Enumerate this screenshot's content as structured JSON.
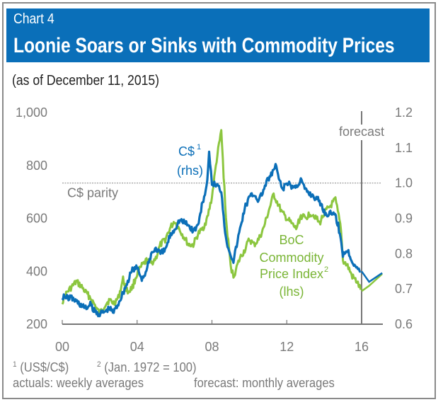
{
  "header": {
    "chart_number": "Chart 4",
    "title": "Loonie Soars or Sinks with Commodity Prices"
  },
  "subtitle": "(as of December 11, 2015)",
  "colors": {
    "header_bg": "#0a6fb9",
    "cad_series": "#0b6fb8",
    "commodity_series": "#8cc63f",
    "axis": "#777777",
    "text_gray": "#7a7a7a"
  },
  "chart_data": {
    "type": "line",
    "title": "Loonie Soars or Sinks with Commodity Prices",
    "subtitle": "(as of December 11, 2015)",
    "xlabel": "",
    "x_ticks": [
      0,
      4,
      8,
      12,
      16
    ],
    "x_tick_labels": [
      "00",
      "04",
      "08",
      "12",
      "16"
    ],
    "xlim": [
      2000,
      2017.1
    ],
    "y_left": {
      "label": "lhs",
      "ticks": [
        200,
        400,
        600,
        800,
        1000
      ],
      "tick_labels": [
        "200",
        "400",
        "600",
        "800",
        "1,000"
      ],
      "lim": [
        200,
        1000
      ]
    },
    "y_right": {
      "label": "rhs",
      "ticks": [
        0.6,
        0.7,
        0.8,
        0.9,
        1.0,
        1.1,
        1.2
      ],
      "tick_labels": [
        "0.6",
        "0.7",
        "0.8",
        "0.9",
        "1.0",
        "1.1",
        "1.2"
      ],
      "lim": [
        0.6,
        1.2
      ]
    },
    "grid": false,
    "reference_line": {
      "axis": "right",
      "value": 1.0,
      "label": "C$ parity",
      "style": "dotted"
    },
    "forecast_marker": {
      "x": 2016.0,
      "label": "forecast"
    },
    "series": [
      {
        "name": "C$ (rhs)",
        "label_lines": [
          "C$",
          "(rhs)"
        ],
        "label_superscript": "1",
        "axis": "right",
        "actual": {
          "x": [
            2000.0,
            2000.25,
            2000.5,
            2000.75,
            2001.0,
            2001.25,
            2001.5,
            2001.75,
            2002.0,
            2002.25,
            2002.5,
            2002.75,
            2003.0,
            2003.25,
            2003.5,
            2003.75,
            2004.0,
            2004.25,
            2004.5,
            2004.75,
            2005.0,
            2005.25,
            2005.5,
            2005.75,
            2006.0,
            2006.25,
            2006.5,
            2006.75,
            2007.0,
            2007.25,
            2007.5,
            2007.75,
            2007.85,
            2008.0,
            2008.25,
            2008.5,
            2008.75,
            2009.0,
            2009.15,
            2009.5,
            2009.75,
            2010.0,
            2010.25,
            2010.5,
            2010.75,
            2011.0,
            2011.25,
            2011.4,
            2011.75,
            2012.0,
            2012.25,
            2012.5,
            2012.75,
            2013.0,
            2013.25,
            2013.5,
            2013.75,
            2014.0,
            2014.25,
            2014.5,
            2014.75,
            2015.0,
            2015.25,
            2015.5,
            2015.75,
            2015.95
          ],
          "y": [
            0.68,
            0.675,
            0.675,
            0.665,
            0.655,
            0.645,
            0.655,
            0.635,
            0.63,
            0.635,
            0.645,
            0.635,
            0.66,
            0.69,
            0.72,
            0.755,
            0.76,
            0.73,
            0.75,
            0.8,
            0.815,
            0.8,
            0.81,
            0.85,
            0.87,
            0.895,
            0.89,
            0.88,
            0.865,
            0.88,
            0.945,
            1.0,
            1.08,
            1.0,
            0.995,
            0.98,
            0.84,
            0.8,
            0.78,
            0.87,
            0.93,
            0.96,
            0.97,
            0.95,
            0.98,
            1.01,
            1.03,
            1.05,
            0.98,
            1.0,
            0.99,
            0.99,
            1.01,
            0.98,
            0.97,
            0.96,
            0.95,
            0.92,
            0.91,
            0.92,
            0.88,
            0.8,
            0.81,
            0.78,
            0.76,
            0.75
          ]
        },
        "forecast": {
          "x": [
            2016.0,
            2016.4,
            2017.1
          ],
          "y": [
            0.75,
            0.72,
            0.745
          ]
        }
      },
      {
        "name": "BoC Commodity Price Index (lhs)",
        "label_lines": [
          "BoC",
          "Commodity",
          "Price Index",
          "(lhs)"
        ],
        "label_superscript": "2",
        "axis": "left",
        "actual": {
          "x": [
            2000.0,
            2000.25,
            2000.5,
            2000.75,
            2001.0,
            2001.25,
            2001.5,
            2001.75,
            2002.0,
            2002.25,
            2002.5,
            2002.75,
            2003.0,
            2003.25,
            2003.5,
            2003.75,
            2004.0,
            2004.25,
            2004.5,
            2004.75,
            2005.0,
            2005.25,
            2005.5,
            2005.75,
            2006.0,
            2006.25,
            2006.5,
            2006.75,
            2007.0,
            2007.25,
            2007.5,
            2007.75,
            2008.0,
            2008.25,
            2008.5,
            2008.75,
            2009.0,
            2009.15,
            2009.5,
            2009.75,
            2010.0,
            2010.25,
            2010.5,
            2010.75,
            2011.0,
            2011.3,
            2011.75,
            2012.0,
            2012.25,
            2012.5,
            2012.75,
            2013.0,
            2013.25,
            2013.5,
            2013.75,
            2014.0,
            2014.25,
            2014.6,
            2014.9,
            2015.0,
            2015.25,
            2015.5,
            2015.75,
            2015.95
          ],
          "y": [
            285,
            320,
            340,
            360,
            345,
            320,
            300,
            270,
            240,
            270,
            290,
            280,
            300,
            370,
            320,
            340,
            390,
            420,
            440,
            430,
            450,
            500,
            520,
            560,
            590,
            560,
            530,
            500,
            500,
            540,
            560,
            600,
            680,
            820,
            930,
            600,
            420,
            380,
            450,
            480,
            520,
            500,
            520,
            560,
            620,
            690,
            620,
            600,
            580,
            560,
            610,
            600,
            620,
            610,
            580,
            620,
            640,
            670,
            560,
            440,
            420,
            380,
            360,
            330
          ]
        },
        "forecast": {
          "x": [
            2016.0,
            2016.4,
            2017.1
          ],
          "y": [
            325,
            345,
            390
          ]
        }
      }
    ]
  },
  "footnotes": {
    "note1_marker": "1",
    "note1": "(US$/C$)",
    "note2_marker": "2",
    "note2": "(Jan. 1972 = 100)",
    "actuals": "actuals: weekly averages",
    "forecast": "forecast: monthly averages"
  }
}
